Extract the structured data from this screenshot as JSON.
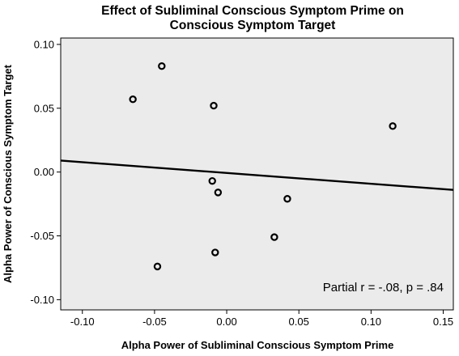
{
  "chart_data": {
    "type": "scatter",
    "title": [
      "Effect of Subliminal Conscious Symptom Prime on",
      "Conscious Symptom Target"
    ],
    "xlabel": "Alpha Power of Subliminal Conscious Symptom Prime",
    "ylabel": "Alpha Power of Conscious Symptom Target",
    "xlim": [
      -0.115,
      0.157
    ],
    "ylim": [
      -0.108,
      0.105
    ],
    "xticks": [
      -0.1,
      -0.05,
      0.0,
      0.05,
      0.1,
      0.15
    ],
    "xtick_labels": [
      "-0.10",
      "-0.05",
      "0.00",
      "0.05",
      "0.10",
      "0.15"
    ],
    "yticks": [
      -0.1,
      -0.05,
      0.0,
      0.05,
      0.1
    ],
    "ytick_labels": [
      "-0.10",
      "-0.05",
      "0.00",
      "0.05",
      "0.10"
    ],
    "points": [
      {
        "x": -0.045,
        "y": 0.083
      },
      {
        "x": -0.065,
        "y": 0.057
      },
      {
        "x": -0.009,
        "y": 0.052
      },
      {
        "x": 0.115,
        "y": 0.036
      },
      {
        "x": -0.01,
        "y": -0.007
      },
      {
        "x": -0.006,
        "y": -0.016
      },
      {
        "x": 0.042,
        "y": -0.021
      },
      {
        "x": 0.033,
        "y": -0.051
      },
      {
        "x": -0.008,
        "y": -0.063
      },
      {
        "x": -0.048,
        "y": -0.074
      }
    ],
    "fit_line": {
      "x": [
        -0.115,
        0.157
      ],
      "y": [
        0.009,
        -0.014
      ]
    },
    "annotation": "Partial r = -.08, p = .84",
    "grid": false,
    "background": "#ebebeb",
    "marker_color": "#000000"
  }
}
